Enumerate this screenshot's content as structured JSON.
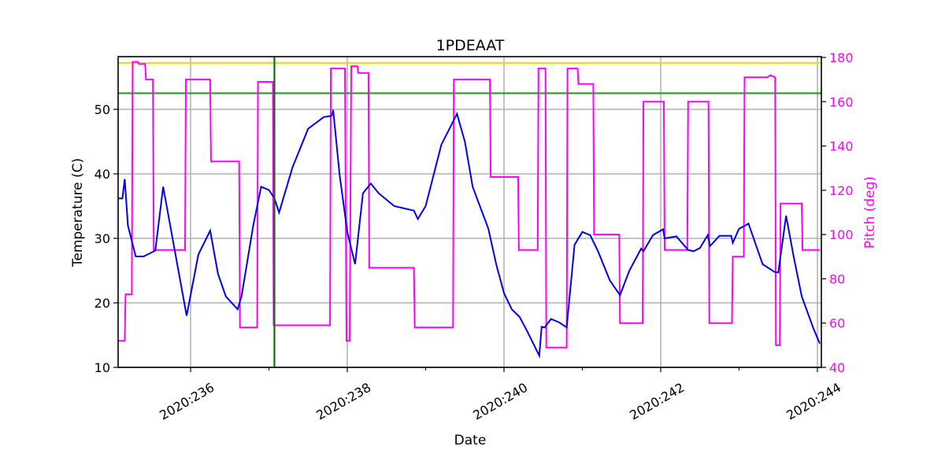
{
  "chart_data": {
    "type": "line",
    "title": "1PDEAAT",
    "xlabel": "Date",
    "ylabel": "Temperature (C)",
    "y2label": "Pitch (deg)",
    "xlim": [
      235.07,
      244.03
    ],
    "ylim": [
      10,
      58
    ],
    "y2lim": [
      40,
      180
    ],
    "x_ticks": [
      236,
      238,
      240,
      242,
      244
    ],
    "x_tick_labels": [
      "2020:236",
      "2020:238",
      "2020:240",
      "2020:242",
      "2020:244"
    ],
    "x_minor_ticks": [
      237,
      239,
      241,
      243
    ],
    "y_ticks": [
      10,
      20,
      30,
      40,
      50
    ],
    "y2_ticks": [
      40,
      60,
      80,
      100,
      120,
      140,
      160,
      180
    ],
    "grid": true,
    "colors": {
      "temperature": "#0000ee",
      "pitch": "#ff00ff",
      "yellow_limit": "#ffd700",
      "green_limit": "#2ca02c",
      "vline": "#007700",
      "right_axis": "#ff00ff"
    },
    "hlines": [
      {
        "name": "yellow-limit",
        "y": 57.2,
        "color": "#ffd700"
      },
      {
        "name": "green-limit",
        "y": 52.5,
        "color": "#2ca02c"
      }
    ],
    "vlines": [
      {
        "name": "now-marker",
        "x": 237.07,
        "color": "#007700"
      }
    ],
    "series": [
      {
        "name": "Temperature (C)",
        "axis": "left",
        "x": [
          235.07,
          235.13,
          235.16,
          235.2,
          235.3,
          235.4,
          235.55,
          235.65,
          235.8,
          235.95,
          236.1,
          236.25,
          236.35,
          236.45,
          236.6,
          236.65,
          236.8,
          236.9,
          237.0,
          237.07,
          237.13,
          237.3,
          237.5,
          237.7,
          237.8,
          237.82,
          237.9,
          238.0,
          238.1,
          238.2,
          238.3,
          238.4,
          238.6,
          238.85,
          238.9,
          239.0,
          239.2,
          239.4,
          239.5,
          239.6,
          239.8,
          239.9,
          240.0,
          240.1,
          240.2,
          240.3,
          240.45,
          240.48,
          240.52,
          240.6,
          240.7,
          240.8,
          240.9,
          241.0,
          241.1,
          241.2,
          241.35,
          241.48,
          241.6,
          241.75,
          241.78,
          241.9,
          242.03,
          242.05,
          242.2,
          242.35,
          242.42,
          242.5,
          242.6,
          242.63,
          242.75,
          242.9,
          242.92,
          243.0,
          243.08,
          243.12,
          243.3,
          243.45,
          243.5,
          243.6,
          243.7,
          243.8,
          243.95,
          244.03
        ],
        "values": [
          36.2,
          36.2,
          39.2,
          32,
          27.2,
          27.2,
          28.1,
          38,
          28,
          18,
          27.5,
          31.2,
          24.5,
          21,
          19,
          21,
          32,
          38,
          37.5,
          36.2,
          34,
          41,
          47,
          48.8,
          49,
          49.9,
          40,
          31,
          26,
          37,
          38.5,
          37,
          35,
          34.3,
          33,
          35,
          44.5,
          49.3,
          45,
          38,
          31.5,
          26,
          21.5,
          19,
          17.8,
          15.5,
          11.8,
          16.3,
          16.2,
          17.5,
          17,
          16.2,
          29,
          31,
          30.5,
          28,
          23.5,
          21.2,
          25,
          28.4,
          28,
          30.5,
          31.4,
          30,
          30.3,
          28.2,
          28,
          28.5,
          30.5,
          28.8,
          30.4,
          30.4,
          29.3,
          31.5,
          32,
          32.3,
          26,
          24.8,
          24.7,
          33.5,
          27,
          21,
          16,
          13.7
        ]
      },
      {
        "name": "Pitch (deg)",
        "axis": "right",
        "x": [
          235.07,
          235.16,
          235.17,
          235.25,
          235.26,
          235.33,
          235.34,
          235.42,
          235.43,
          235.52,
          235.53,
          235.64,
          235.65,
          235.93,
          235.94,
          236.25,
          236.26,
          236.62,
          236.63,
          236.85,
          236.86,
          237.05,
          237.06,
          237.78,
          237.79,
          237.97,
          237.99,
          238.03,
          238.05,
          238.13,
          238.14,
          238.27,
          238.28,
          238.85,
          238.86,
          239.35,
          239.36,
          239.82,
          239.83,
          240.18,
          240.19,
          240.43,
          240.44,
          240.53,
          240.54,
          240.8,
          240.81,
          240.94,
          240.95,
          241.14,
          241.15,
          241.47,
          241.48,
          241.77,
          241.78,
          242.04,
          242.05,
          242.34,
          242.35,
          242.61,
          242.62,
          242.91,
          242.92,
          243.06,
          243.07,
          243.36,
          243.4,
          243.46,
          243.47,
          243.52,
          243.53,
          243.8,
          243.81,
          244.03
        ],
        "values": [
          52,
          52,
          73,
          73,
          178,
          178,
          177,
          177,
          170,
          170,
          93,
          93,
          93,
          93,
          170,
          170,
          133,
          133,
          58,
          58,
          169,
          169,
          59,
          59,
          175,
          175,
          52,
          52,
          176,
          176,
          173,
          173,
          85,
          85,
          58,
          58,
          170,
          170,
          126,
          126,
          93,
          93,
          175,
          175,
          49,
          49,
          175,
          175,
          168,
          168,
          100,
          100,
          60,
          60,
          160,
          160,
          93,
          93,
          160,
          160,
          60,
          60,
          90,
          90,
          171,
          171,
          172,
          171,
          50,
          50,
          114,
          114,
          93,
          93
        ]
      }
    ]
  },
  "labels": {
    "title": "1PDEAAT",
    "xlabel": "Date",
    "ylabel": "Temperature (C)",
    "y2label": "Pitch (deg)"
  }
}
